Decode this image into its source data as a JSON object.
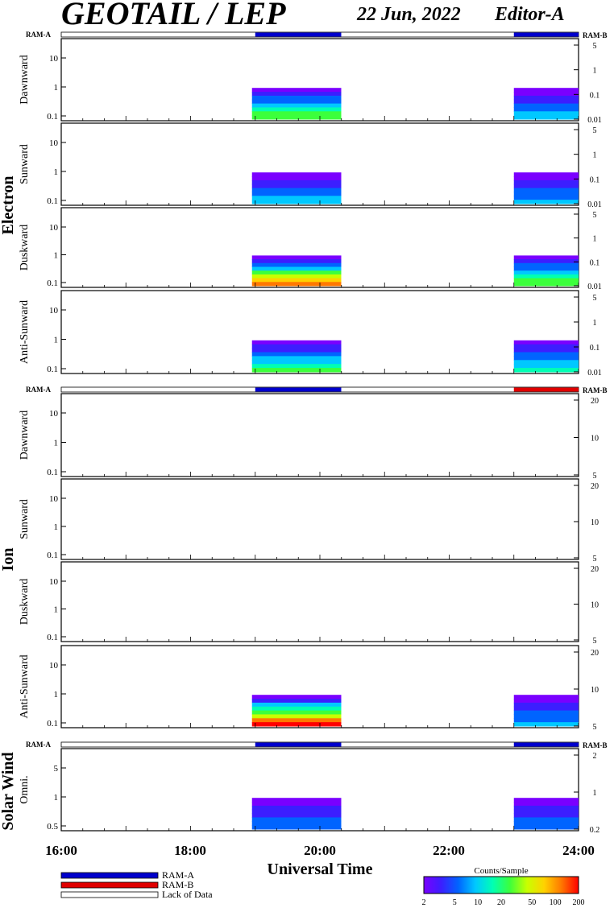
{
  "header": {
    "title": "GEOTAIL / LEP",
    "date": "22 Jun, 2022",
    "editor": "Editor-A"
  },
  "colors": {
    "ram_a": "#0000cc",
    "ram_b": "#e00000",
    "colorbar": [
      "#7a00ff",
      "#3c1eff",
      "#0064ff",
      "#00c8ff",
      "#00ffb4",
      "#3cff3c",
      "#c8ff00",
      "#ffd200",
      "#ff7800",
      "#ff0000"
    ]
  },
  "groups": [
    {
      "name": "Electron",
      "ram_a_label": "RAM-A",
      "ram_b_label": "RAM-B",
      "ram_status": [
        {
          "start": 19.0,
          "end": 20.33,
          "mode": "RAM-A"
        },
        {
          "start": 23.0,
          "end": 24.0,
          "mode": "RAM-A"
        }
      ],
      "panels": [
        {
          "label": "Dawnward",
          "left_ticks": [
            "10",
            "1",
            "0.1"
          ],
          "right_ticks": [
            "5",
            "1",
            "0.1",
            "0.01"
          ],
          "blocks": [
            {
              "start": 18.95,
              "end": 20.33,
              "hot": 0.6
            },
            {
              "start": 23.0,
              "end": 24.0,
              "hot": 0.35
            }
          ]
        },
        {
          "label": "Sunward",
          "left_ticks": [
            "10",
            "1",
            "0.1"
          ],
          "right_ticks": [
            "5",
            "1",
            "0.1",
            "0.01"
          ],
          "blocks": [
            {
              "start": 18.95,
              "end": 20.33,
              "hot": 0.35
            },
            {
              "start": 23.0,
              "end": 24.0,
              "hot": 0.3
            }
          ]
        },
        {
          "label": "Duskward",
          "left_ticks": [
            "10",
            "1",
            "0.1"
          ],
          "right_ticks": [
            "5",
            "1",
            "0.1",
            "0.01"
          ],
          "blocks": [
            {
              "start": 18.95,
              "end": 20.33,
              "hot": 0.9
            },
            {
              "start": 23.0,
              "end": 24.0,
              "hot": 0.6
            }
          ]
        },
        {
          "label": "Anti-Sunward",
          "left_ticks": [
            "10",
            "1",
            "0.1"
          ],
          "right_ticks": [
            "5",
            "1",
            "0.1",
            "0.01"
          ],
          "blocks": [
            {
              "start": 18.95,
              "end": 20.33,
              "hot": 0.5
            },
            {
              "start": 23.0,
              "end": 24.0,
              "hot": 0.45
            }
          ]
        }
      ]
    },
    {
      "name": "Ion",
      "ram_a_label": "RAM-A",
      "ram_b_label": "RAM-B",
      "ram_status": [
        {
          "start": 19.0,
          "end": 20.33,
          "mode": "RAM-A"
        },
        {
          "start": 23.0,
          "end": 24.0,
          "mode": "RAM-B"
        }
      ],
      "panels": [
        {
          "label": "Dawnward",
          "left_ticks": [
            "10",
            "1",
            "0.1"
          ],
          "right_ticks": [
            "20",
            "10",
            "5"
          ],
          "blocks": []
        },
        {
          "label": "Sunward",
          "left_ticks": [
            "10",
            "1",
            "0.1"
          ],
          "right_ticks": [
            "20",
            "10",
            "5"
          ],
          "blocks": []
        },
        {
          "label": "Duskward",
          "left_ticks": [
            "10",
            "1",
            "0.1"
          ],
          "right_ticks": [
            "20",
            "10",
            "5"
          ],
          "blocks": []
        },
        {
          "label": "Anti-Sunward",
          "left_ticks": [
            "10",
            "1",
            "0.1"
          ],
          "right_ticks": [
            "20",
            "10",
            "5"
          ],
          "blocks": [
            {
              "start": 18.95,
              "end": 20.33,
              "hot": 1.0
            },
            {
              "start": 23.0,
              "end": 24.0,
              "hot": 0.3
            }
          ]
        }
      ]
    },
    {
      "name": "Solar Wind",
      "ram_a_label": "RAM-A",
      "ram_b_label": "RAM-B",
      "ram_status": [
        {
          "start": 19.0,
          "end": 20.33,
          "mode": "RAM-A"
        },
        {
          "start": 23.0,
          "end": 24.0,
          "mode": "RAM-A"
        }
      ],
      "panels": [
        {
          "label": "Omni.",
          "left_ticks": [
            "5",
            "1",
            "0.5"
          ],
          "right_ticks": [
            "2",
            "1",
            "0.2"
          ],
          "blocks": [
            {
              "start": 18.95,
              "end": 20.33,
              "hot": 0.25
            },
            {
              "start": 23.0,
              "end": 24.0,
              "hot": 0.25
            }
          ]
        }
      ]
    }
  ],
  "x_axis": {
    "tick_labels": [
      "16:00",
      "18:00",
      "20:00",
      "22:00",
      "24:00"
    ],
    "title": "Universal Time"
  },
  "legend": {
    "ram_a": "RAM-A",
    "ram_b": "RAM-B",
    "lack": "Lack of Data"
  },
  "colorbar": {
    "title": "Counts/Sample",
    "ticks": [
      "2",
      "5",
      "10",
      "20",
      "50",
      "100",
      "200"
    ]
  },
  "chart_data": {
    "type": "heatmap",
    "title": "GEOTAIL / LEP",
    "xlabel": "Universal Time",
    "xlim": [
      "16:00",
      "24:00"
    ],
    "data_intervals_ut": [
      [
        18.95,
        20.33
      ],
      [
        23.0,
        24.0
      ]
    ],
    "colorbar_range": [
      2,
      200
    ],
    "colorbar_label": "Counts/Sample"
  }
}
